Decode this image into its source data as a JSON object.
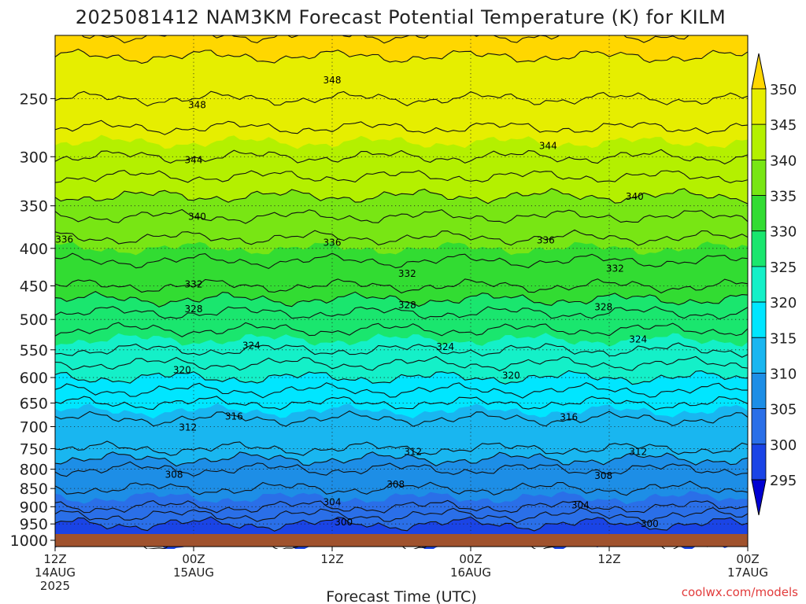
{
  "chart_data": {
    "type": "heatmap",
    "title": "2025081412 NAM3KM Forecast Potential Temperature (K) for KILM",
    "xlabel": "Forecast Time (UTC)",
    "ylabel": "",
    "credit": "coolwx.com/models",
    "y_scale": "log",
    "y_reversed": true,
    "ylim": [
      1020,
      205
    ],
    "y_ticks": [
      250,
      300,
      350,
      400,
      450,
      500,
      550,
      600,
      650,
      700,
      750,
      800,
      850,
      900,
      950,
      1000
    ],
    "x_ticks": [
      {
        "hour": 0,
        "l1": "12Z",
        "l2": "14AUG",
        "l3": "2025"
      },
      {
        "hour": 12,
        "l1": "00Z",
        "l2": "15AUG",
        "l3": ""
      },
      {
        "hour": 24,
        "l1": "12Z",
        "l2": "",
        "l3": ""
      },
      {
        "hour": 36,
        "l1": "00Z",
        "l2": "16AUG",
        "l3": ""
      },
      {
        "hour": 48,
        "l1": "12Z",
        "l2": "",
        "l3": ""
      },
      {
        "hour": 60,
        "l1": "00Z",
        "l2": "17AUG",
        "l3": ""
      }
    ],
    "xlim": [
      0,
      60
    ],
    "colorbar": {
      "labels": [
        295,
        300,
        305,
        310,
        315,
        320,
        325,
        330,
        335,
        340,
        345,
        350
      ],
      "colors": [
        "#0000d2",
        "#1a44e6",
        "#2a6fe8",
        "#1d8ee6",
        "#19b6f0",
        "#00e6ff",
        "#14f0c8",
        "#1ae66e",
        "#32dc32",
        "#78e614",
        "#b4f000",
        "#e6ee00",
        "#ffd700"
      ],
      "extend": "both"
    },
    "profile": [
      {
        "p": 1010,
        "theta": 298
      },
      {
        "p": 1000,
        "theta": 299
      },
      {
        "p": 950,
        "theta": 300
      },
      {
        "p": 900,
        "theta": 304
      },
      {
        "p": 850,
        "theta": 306
      },
      {
        "p": 800,
        "theta": 308
      },
      {
        "p": 750,
        "theta": 312
      },
      {
        "p": 700,
        "theta": 313
      },
      {
        "p": 650,
        "theta": 316
      },
      {
        "p": 600,
        "theta": 320
      },
      {
        "p": 550,
        "theta": 324
      },
      {
        "p": 500,
        "theta": 327
      },
      {
        "p": 450,
        "theta": 332
      },
      {
        "p": 400,
        "theta": 335
      },
      {
        "p": 350,
        "theta": 339
      },
      {
        "p": 300,
        "theta": 344
      },
      {
        "p": 250,
        "theta": 348
      },
      {
        "p": 205,
        "theta": 351
      }
    ],
    "contour_labels": [
      {
        "hour": 12.3,
        "p": 255,
        "text": "348"
      },
      {
        "hour": 24.0,
        "p": 236,
        "text": "348"
      },
      {
        "hour": 12.0,
        "p": 303,
        "text": "344"
      },
      {
        "hour": 42.7,
        "p": 290,
        "text": "344"
      },
      {
        "hour": 12.3,
        "p": 362,
        "text": "340"
      },
      {
        "hour": 50.2,
        "p": 340,
        "text": "340"
      },
      {
        "hour": 0.8,
        "p": 389,
        "text": "336"
      },
      {
        "hour": 24.0,
        "p": 393,
        "text": "336"
      },
      {
        "hour": 42.5,
        "p": 390,
        "text": "336"
      },
      {
        "hour": 12.0,
        "p": 448,
        "text": "332"
      },
      {
        "hour": 30.5,
        "p": 433,
        "text": "332"
      },
      {
        "hour": 48.5,
        "p": 426,
        "text": "332"
      },
      {
        "hour": 12.0,
        "p": 484,
        "text": "328"
      },
      {
        "hour": 30.5,
        "p": 478,
        "text": "328"
      },
      {
        "hour": 47.5,
        "p": 481,
        "text": "328"
      },
      {
        "hour": 17.0,
        "p": 543,
        "text": "324"
      },
      {
        "hour": 33.8,
        "p": 545,
        "text": "324"
      },
      {
        "hour": 50.5,
        "p": 532,
        "text": "324"
      },
      {
        "hour": 11.0,
        "p": 586,
        "text": "320"
      },
      {
        "hour": 39.5,
        "p": 596,
        "text": "320"
      },
      {
        "hour": 15.5,
        "p": 678,
        "text": "316"
      },
      {
        "hour": 44.5,
        "p": 680,
        "text": "316"
      },
      {
        "hour": 11.5,
        "p": 702,
        "text": "312"
      },
      {
        "hour": 31.0,
        "p": 758,
        "text": "312"
      },
      {
        "hour": 50.5,
        "p": 758,
        "text": "312"
      },
      {
        "hour": 10.3,
        "p": 814,
        "text": "308"
      },
      {
        "hour": 29.5,
        "p": 839,
        "text": "308"
      },
      {
        "hour": 47.5,
        "p": 817,
        "text": "308"
      },
      {
        "hour": 24.0,
        "p": 887,
        "text": "304"
      },
      {
        "hour": 45.5,
        "p": 896,
        "text": "304"
      },
      {
        "hour": 25.0,
        "p": 945,
        "text": "300"
      },
      {
        "hour": 51.5,
        "p": 949,
        "text": "300"
      }
    ]
  }
}
